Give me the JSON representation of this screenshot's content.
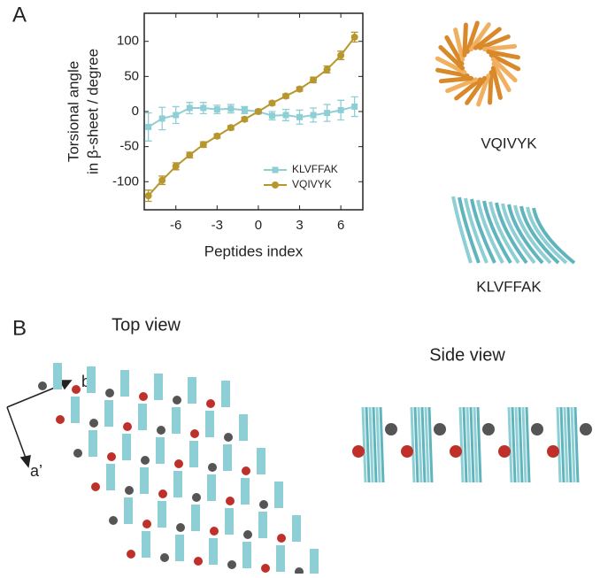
{
  "chart_data": {
    "type": "line",
    "xlabel": "Peptides index",
    "ylabel": [
      "Torsional angle",
      "in β-sheet / degree"
    ],
    "x": [
      -8,
      -7,
      -6,
      -5,
      -4,
      -3,
      -2,
      -1,
      0,
      1,
      2,
      3,
      4,
      5,
      6,
      7
    ],
    "series": [
      {
        "name": "KLVFFAK",
        "color": "#8ecfd6",
        "marker": "square",
        "values": [
          -22,
          -10,
          -5,
          5,
          5,
          3,
          4,
          2,
          0,
          -6,
          -5,
          -8,
          -5,
          -2,
          2,
          7
        ],
        "errors": [
          20,
          16,
          12,
          8,
          8,
          6,
          6,
          5,
          3,
          6,
          8,
          10,
          10,
          12,
          14,
          14
        ]
      },
      {
        "name": "VQIVYK",
        "color": "#b8962e",
        "marker": "circle",
        "values": [
          -120,
          -98,
          -78,
          -62,
          -47,
          -35,
          -23,
          -11,
          0,
          12,
          22,
          32,
          45,
          60,
          80,
          106
        ],
        "errors": [
          8,
          6,
          5,
          4,
          4,
          3,
          3,
          3,
          2,
          3,
          3,
          3,
          4,
          5,
          6,
          7
        ]
      }
    ],
    "xlim": [
      -8.3,
      7.6
    ],
    "xticks": [
      -6,
      -3,
      0,
      3,
      6
    ],
    "ylim": [
      -140,
      140
    ],
    "yticks": [
      -100,
      -50,
      0,
      50,
      100
    ],
    "legend": "lower right"
  },
  "panels": [
    "A",
    "B"
  ],
  "structures": [
    "VQIVYK",
    "KLVFFAK"
  ],
  "views": [
    "Top view",
    "Side view"
  ],
  "axes": [
    "b’",
    "a’"
  ]
}
